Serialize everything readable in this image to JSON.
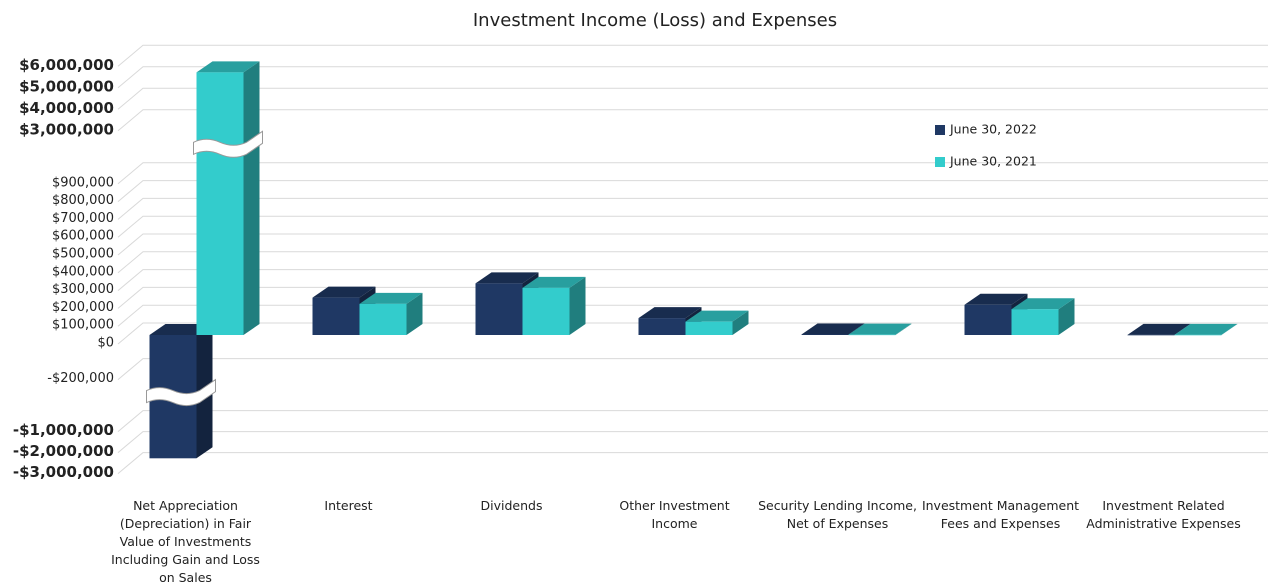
{
  "chart_data": {
    "type": "bar3d",
    "title": "Investment Income (Loss) and Expenses",
    "categories": [
      "Net Appreciation (Depreciation) in Fair Value of Investments Including Gain and Loss on Sales",
      "Interest",
      "Dividends",
      "Other Investment Income",
      "Security Lending Income, Net of Expenses",
      "Investment Management Fees and Expenses",
      "Investment Related Administrative Expenses"
    ],
    "series": [
      {
        "name": "June 30, 2022",
        "color": "#1f3864",
        "values": [
          -2700000,
          210000,
          290000,
          95000,
          3000,
          170000,
          1000
        ]
      },
      {
        "name": "June 30, 2021",
        "color": "#33cccc",
        "values": [
          5300000,
          175000,
          265000,
          75000,
          2000,
          145000,
          1000
        ]
      }
    ],
    "yticks": [
      {
        "value": 6000000,
        "label": "$6,000,000"
      },
      {
        "value": 5000000,
        "label": "$5,000,000"
      },
      {
        "value": 4000000,
        "label": "$4,000,000"
      },
      {
        "value": 3000000,
        "label": "$3,000,000"
      },
      {
        "value": 900000,
        "label": "$900,000"
      },
      {
        "value": 800000,
        "label": "$800,000"
      },
      {
        "value": 700000,
        "label": "$700,000"
      },
      {
        "value": 600000,
        "label": "$600,000"
      },
      {
        "value": 500000,
        "label": "$500,000"
      },
      {
        "value": 400000,
        "label": "$400,000"
      },
      {
        "value": 300000,
        "label": "$300,000"
      },
      {
        "value": 200000,
        "label": "$200,000"
      },
      {
        "value": 100000,
        "label": "$100,000"
      },
      {
        "value": 0,
        "label": "$0"
      },
      {
        "value": -200000,
        "label": "-$200,000"
      },
      {
        "value": -1000000,
        "label": "-$1,000,000"
      },
      {
        "value": -2000000,
        "label": "-$2,000,000"
      },
      {
        "value": -3000000,
        "label": "-$3,000,000"
      }
    ],
    "grid": true,
    "legend": "right"
  }
}
